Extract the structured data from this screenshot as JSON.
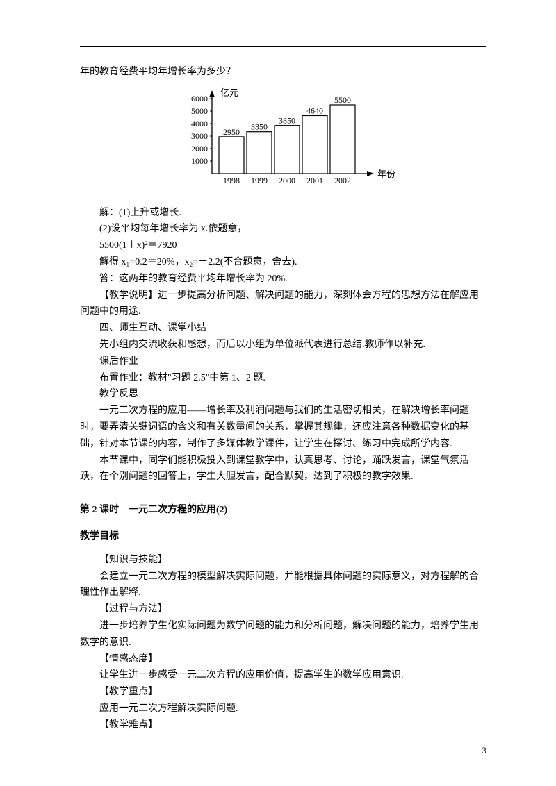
{
  "topline": "年的教育经费平均年增长率为多少？",
  "chart": {
    "type": "bar",
    "ylabel": "亿元",
    "xlabel": "年份",
    "categories": [
      "1998",
      "1999",
      "2000",
      "2001",
      "2002"
    ],
    "values": [
      2950,
      3350,
      3850,
      4640,
      5500
    ],
    "bar_labels": [
      "2950",
      "3350",
      "3850",
      "4640",
      "5500"
    ],
    "ylim": [
      0,
      6000
    ],
    "ytick_step": 1000,
    "yticks": [
      "1000",
      "2000",
      "3000",
      "4000",
      "5000",
      "6000"
    ],
    "bar_fill": "#ffffff",
    "bar_stroke": "#000000",
    "axis_color": "#000000",
    "bar_width": 0.7,
    "text_color": "#000000",
    "label_fontsize": 12
  },
  "sol_header": "解：(1)上升或增长.",
  "sol_2": "(2)设平均每年增长率为 x.依题意，",
  "eq": "5500(1＋x)²＝7920",
  "roots": "解得 x₁=0.2＝20%，x₂=－2.2(不合题意，舍去).",
  "answer": "答：这两年的教育经费平均年增长率为 20%.",
  "note": "【教学说明】进一步提高分析问题、解决问题的能力，深刻体会方程的思想方法在解应用问题中的用途.",
  "h4": "四、师生互动、课堂小结",
  "summary": "先小组内交流收获和感想，而后以小组为单位派代表进行总结.教师作以补充.",
  "hw1": "课后作业",
  "hw2": "布置作业：教材\"习题 2.5\"中第 1、2 题.",
  "reflect_h": "教学反思",
  "reflect1": "一元二次方程的应用——增长率及利润问题与我们的生活密切相关，在解决增长率问题时，要弄清关键词语的含义和有关数量间的关系，掌握其规律，还应注意各种数据变化的基础，针对本节课的内容，制作了多媒体教学课件，让学生在探讨、练习中完成所学内容.",
  "reflect2": "本节课中，同学们能积极投入到课堂教学中，认真思考、讨论，踊跃发言，课堂气氛活跃，在个别问题的回答上，学生大胆发言，配合默契，达到了积极的教学效果.",
  "lesson_title": "第 2 课时　一元二次方程的应用(2)",
  "goal_h": "教学目标",
  "k1": "【知识与技能】",
  "k1b": "会建立一元二次方程的模型解决实际问题，并能根据具体问题的实际意义，对方程解的合理性作出解释.",
  "k2": "【过程与方法】",
  "k2b": "进一步培养学生化实际问题为数学问题的能力和分析问题，解决问题的能力，培养学生用数学的意识.",
  "k3": "【情感态度】",
  "k3b": "让学生进一步感受一元二次方程的应用价值，提高学生的数学应用意识.",
  "k4": "【教学重点】",
  "k4b": "应用一元二次方程解决实际问题.",
  "k5": "【教学难点】",
  "page": "3"
}
